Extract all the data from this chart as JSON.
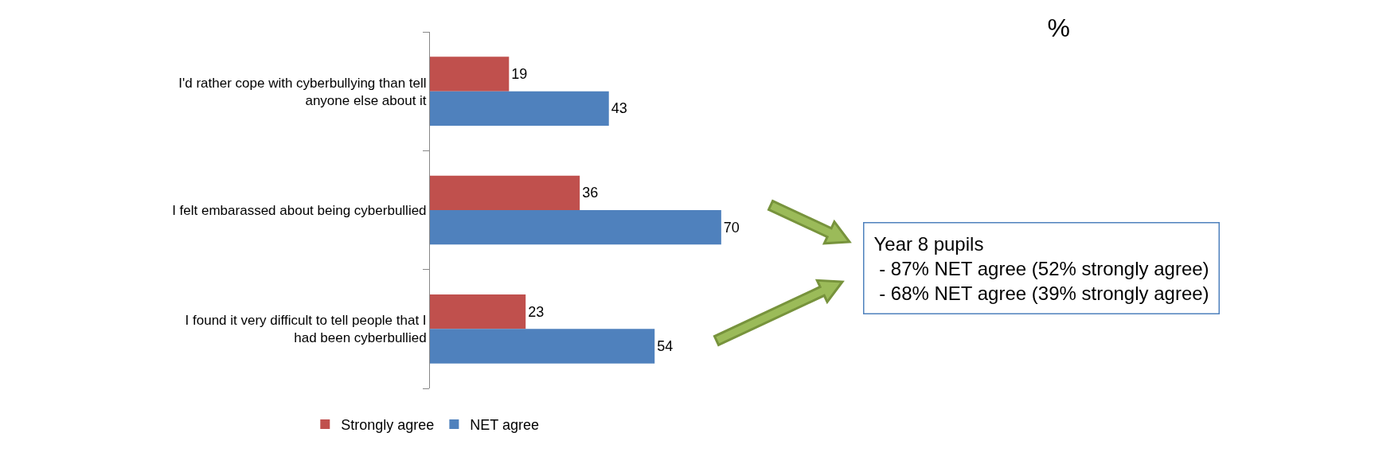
{
  "chart_data": {
    "type": "bar",
    "orientation": "horizontal",
    "title": "%",
    "categories": [
      "I'd rather cope with cyberbullying than tell anyone else about it",
      "I felt embarassed about being cyberbullied",
      "I found it very difficult to tell people that I had been cyberbullied"
    ],
    "series": [
      {
        "name": "Strongly agree",
        "color": "#c0504d",
        "values": [
          19,
          36,
          23
        ]
      },
      {
        "name": "NET agree",
        "color": "#4f81bd",
        "values": [
          43,
          70,
          54
        ]
      }
    ],
    "data_labels": true,
    "grid": false,
    "legend": "bottom",
    "tick_labels": "y",
    "annotations": [
      "Year 8 pupils\n - 87% NET agree (52% strongly agree)\n - 68% NET agree (39% strongly agree)"
    ]
  }
}
